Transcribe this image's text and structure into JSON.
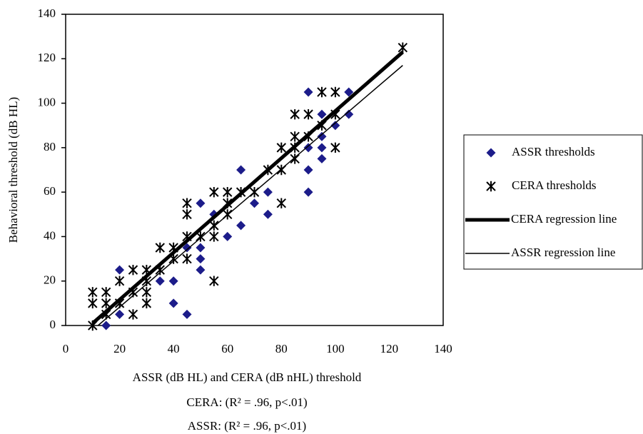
{
  "chart_data": {
    "type": "scatter",
    "x_label": "ASSR (dB HL) and CERA (dB nHL) threshold",
    "y_label": "Behavioral threshold (dB HL)",
    "annotations": [
      "CERA:  (R² = .96, p<.01)",
      "ASSR:  (R² = .96, p<.01)"
    ],
    "xlim": [
      0,
      140
    ],
    "xticks": [
      0,
      20,
      40,
      60,
      80,
      100,
      120,
      140
    ],
    "ylim": [
      0,
      140
    ],
    "yticks": [
      0,
      20,
      40,
      60,
      80,
      100,
      120,
      140
    ],
    "legend": "right",
    "series": [
      {
        "name": "ASSR thresholds",
        "color": "#1c1c8a",
        "marker": "diamond",
        "x": [
          15,
          20,
          20,
          35,
          40,
          40,
          45,
          45,
          50,
          50,
          50,
          50,
          55,
          60,
          65,
          65,
          70,
          75,
          75,
          90,
          90,
          90,
          90,
          95,
          95,
          95,
          95,
          100,
          105,
          105
        ],
        "values": [
          0,
          25,
          5,
          20,
          20,
          10,
          5,
          35,
          55,
          35,
          30,
          25,
          50,
          40,
          70,
          45,
          55,
          60,
          50,
          105,
          80,
          70,
          60,
          95,
          85,
          80,
          75,
          90,
          105,
          95
        ]
      },
      {
        "name": "CERA thresholds",
        "color": "#000000",
        "marker": "asterisk",
        "x": [
          10,
          10,
          10,
          15,
          15,
          15,
          20,
          20,
          25,
          25,
          25,
          30,
          30,
          30,
          30,
          35,
          35,
          40,
          40,
          45,
          45,
          45,
          45,
          50,
          55,
          55,
          55,
          55,
          60,
          60,
          60,
          65,
          70,
          75,
          80,
          80,
          80,
          85,
          85,
          85,
          85,
          90,
          90,
          95,
          95,
          100,
          100,
          100,
          125
        ],
        "values": [
          15,
          10,
          0,
          15,
          10,
          5,
          20,
          10,
          25,
          15,
          5,
          25,
          20,
          15,
          10,
          35,
          25,
          35,
          30,
          55,
          50,
          40,
          30,
          40,
          60,
          45,
          40,
          20,
          60,
          55,
          50,
          60,
          60,
          70,
          80,
          70,
          55,
          95,
          85,
          80,
          75,
          95,
          85,
          105,
          90,
          105,
          95,
          80,
          125
        ]
      },
      {
        "name": "CERA regression line",
        "color": "#000000",
        "marker": "line",
        "line_width": 5,
        "x": [
          10,
          125
        ],
        "values": [
          1,
          123
        ]
      },
      {
        "name": "ASSR regression line",
        "color": "#000000",
        "marker": "line",
        "line_width": 1.5,
        "x": [
          12,
          125
        ],
        "values": [
          0,
          117
        ]
      }
    ]
  }
}
